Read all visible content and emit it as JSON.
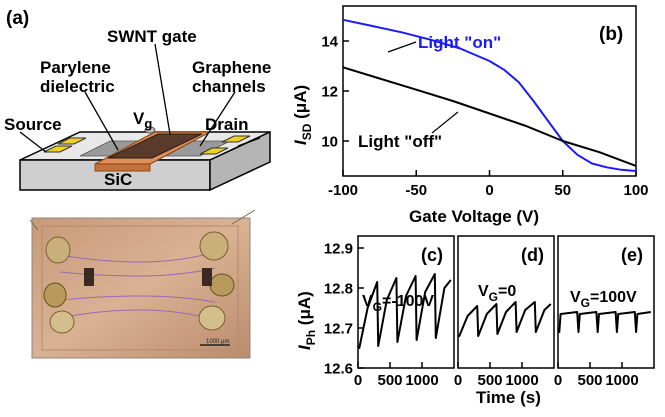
{
  "panel_labels": {
    "a": "(a)",
    "b": "(b)",
    "c": "(c)",
    "d": "(d)",
    "e": "(e)"
  },
  "device_labels": {
    "swnt_gate": "SWNT gate",
    "parylene_line1": "Parylene",
    "parylene_line2": "dielectric",
    "graphene_line1": "Graphene",
    "graphene_line2": "channels",
    "vg_main": "V",
    "vg_sub": "g",
    "source": "Source",
    "drain": "Drain",
    "substrate": "SiC"
  },
  "photo": {
    "scale_bar_label": "1000 μm"
  },
  "colors": {
    "light_on": "#1a1aff",
    "light_off": "#000000",
    "sic": "#d4d4d4",
    "dielectric": "#e0905a",
    "gate": "#5a3a2a",
    "contact": "#f0d020"
  },
  "chart_data": [
    {
      "type": "line",
      "panel": "(b)",
      "xlabel": "Gate Voltage (V)",
      "ylabel_main": "I",
      "ylabel_sub": "SD",
      "ylabel_unit": " (μA)",
      "xlim": [
        -100,
        100
      ],
      "ylim": [
        8.6,
        15.4
      ],
      "xticks": [
        -100,
        -50,
        0,
        50,
        100
      ],
      "yticks": [
        10,
        12,
        14
      ],
      "series": [
        {
          "name": "Light \"on\"",
          "color": "#1a1aff",
          "x": [
            -100,
            -80,
            -60,
            -40,
            -20,
            0,
            10,
            20,
            30,
            40,
            50,
            60,
            70,
            80,
            90,
            100
          ],
          "y": [
            14.85,
            14.6,
            14.35,
            14.05,
            13.7,
            13.2,
            12.85,
            12.35,
            11.6,
            10.8,
            10.0,
            9.45,
            9.1,
            8.95,
            8.85,
            8.8
          ]
        },
        {
          "name": "Light \"off\"",
          "color": "#000000",
          "x": [
            -100,
            -75,
            -50,
            -25,
            0,
            25,
            50,
            75,
            100
          ],
          "y": [
            12.95,
            12.5,
            12.05,
            11.6,
            11.1,
            10.6,
            10.0,
            9.55,
            9.0
          ]
        }
      ]
    },
    {
      "type": "line",
      "panel": "(c)",
      "annotation_main": "V",
      "annotation_sub": "G",
      "annotation_value": "=-100V",
      "xlim": [
        0,
        1500
      ],
      "ylim": [
        12.6,
        12.93
      ],
      "xticks": [
        0,
        500,
        1000
      ],
      "yticks": [
        12.6,
        12.7,
        12.8,
        12.9
      ],
      "series": [
        {
          "color": "#000000",
          "x": [
            0,
            20,
            150,
            300,
            315,
            450,
            600,
            615,
            750,
            900,
            915,
            1050,
            1200,
            1215,
            1350,
            1450
          ],
          "y": [
            12.655,
            12.65,
            12.75,
            12.815,
            12.655,
            12.77,
            12.825,
            12.665,
            12.78,
            12.83,
            12.67,
            12.79,
            12.835,
            12.675,
            12.8,
            12.82
          ]
        }
      ]
    },
    {
      "type": "line",
      "panel": "(d)",
      "annotation_main": "V",
      "annotation_sub": "G",
      "annotation_value": "=0",
      "xlim": [
        0,
        1500
      ],
      "ylim": [
        12.6,
        12.93
      ],
      "xticks": [
        0,
        500,
        1000
      ],
      "series": [
        {
          "color": "#000000",
          "x": [
            0,
            20,
            150,
            300,
            315,
            450,
            600,
            615,
            750,
            900,
            915,
            1050,
            1200,
            1215,
            1350,
            1450
          ],
          "y": [
            12.68,
            12.68,
            12.73,
            12.755,
            12.68,
            12.735,
            12.76,
            12.685,
            12.74,
            12.765,
            12.69,
            12.745,
            12.765,
            12.69,
            12.745,
            12.76
          ]
        }
      ]
    },
    {
      "type": "line",
      "panel": "(e)",
      "annotation_main": "V",
      "annotation_sub": "G",
      "annotation_value": "=100V",
      "xlim": [
        0,
        1500
      ],
      "ylim": [
        12.6,
        12.93
      ],
      "xticks": [
        0,
        500,
        1000
      ],
      "series": [
        {
          "color": "#000000",
          "x": [
            0,
            20,
            40,
            300,
            320,
            340,
            600,
            620,
            640,
            900,
            920,
            940,
            1200,
            1220,
            1240,
            1450
          ],
          "y": [
            12.69,
            12.69,
            12.735,
            12.74,
            12.69,
            12.735,
            12.74,
            12.69,
            12.735,
            12.74,
            12.69,
            12.735,
            12.74,
            12.69,
            12.735,
            12.74
          ]
        }
      ]
    }
  ],
  "small_axes": {
    "xlabel": "Time (s)",
    "ylabel_main": "I",
    "ylabel_sub": "Ph",
    "ylabel_unit": " (μA)"
  }
}
